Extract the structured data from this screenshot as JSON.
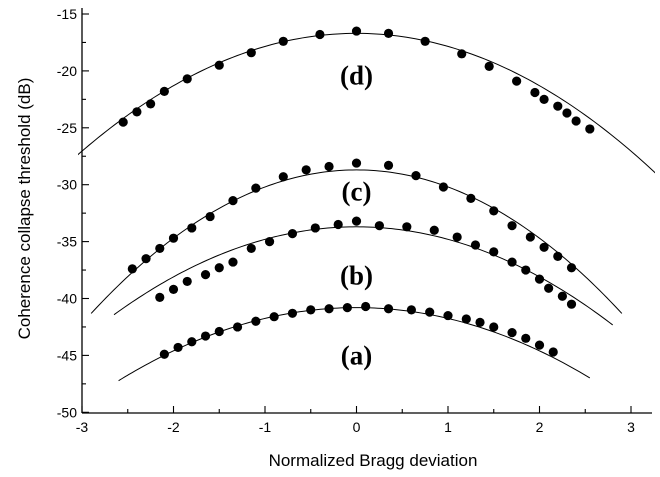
{
  "chart_data": {
    "type": "scatter",
    "xlabel": "Normalized Bragg deviation",
    "ylabel": "Coherence collapse threshold (dB)",
    "xlim": [
      -3,
      3.5
    ],
    "ylim": [
      -50,
      -15
    ],
    "xticks": [
      -3,
      -2,
      -1,
      0,
      1,
      2,
      3
    ],
    "yticks": [
      -50,
      -45,
      -40,
      -35,
      -30,
      -25,
      -20,
      -15
    ],
    "grid": false,
    "series": [
      {
        "name": "(a)",
        "label_pos": [
          0,
          -45
        ],
        "fit": {
          "peak": -40.8,
          "curvature": 0.95,
          "x_range": [
            -2.6,
            2.55
          ]
        },
        "points": [
          [
            -2.1,
            -44.9
          ],
          [
            -1.95,
            -44.3
          ],
          [
            -1.8,
            -43.8
          ],
          [
            -1.65,
            -43.3
          ],
          [
            -1.5,
            -42.9
          ],
          [
            -1.3,
            -42.5
          ],
          [
            -1.1,
            -42.0
          ],
          [
            -0.9,
            -41.6
          ],
          [
            -0.7,
            -41.3
          ],
          [
            -0.5,
            -41.0
          ],
          [
            -0.3,
            -40.9
          ],
          [
            -0.1,
            -40.8
          ],
          [
            0.1,
            -40.7
          ],
          [
            0.35,
            -40.9
          ],
          [
            0.6,
            -41.0
          ],
          [
            0.8,
            -41.2
          ],
          [
            1.0,
            -41.5
          ],
          [
            1.2,
            -41.8
          ],
          [
            1.35,
            -42.1
          ],
          [
            1.5,
            -42.5
          ],
          [
            1.7,
            -43.0
          ],
          [
            1.85,
            -43.5
          ],
          [
            2.0,
            -44.1
          ],
          [
            2.15,
            -44.7
          ]
        ]
      },
      {
        "name": "(b)",
        "label_pos": [
          0,
          -38
        ],
        "fit": {
          "peak": -33.7,
          "curvature": 1.1,
          "x_range": [
            -2.65,
            2.8
          ]
        },
        "points": [
          [
            -2.15,
            -39.9
          ],
          [
            -2.0,
            -39.2
          ],
          [
            -1.85,
            -38.5
          ],
          [
            -1.65,
            -37.9
          ],
          [
            -1.5,
            -37.3
          ],
          [
            -1.35,
            -36.8
          ],
          [
            -1.15,
            -35.6
          ],
          [
            -0.95,
            -35.0
          ],
          [
            -0.7,
            -34.3
          ],
          [
            -0.45,
            -33.8
          ],
          [
            -0.2,
            -33.5
          ],
          [
            0,
            -33.2
          ],
          [
            0.25,
            -33.6
          ],
          [
            0.55,
            -33.7
          ],
          [
            0.85,
            -34.0
          ],
          [
            1.1,
            -34.6
          ],
          [
            1.3,
            -35.3
          ],
          [
            1.5,
            -35.9
          ],
          [
            1.7,
            -36.8
          ],
          [
            1.85,
            -37.5
          ],
          [
            2.0,
            -38.3
          ],
          [
            2.1,
            -39.1
          ],
          [
            2.25,
            -39.8
          ],
          [
            2.35,
            -40.5
          ]
        ]
      },
      {
        "name": "(c)",
        "label_pos": [
          0,
          -30.6
        ],
        "fit": {
          "peak": -28.7,
          "curvature": 1.5,
          "x_range": [
            -2.9,
            2.9
          ]
        },
        "points": [
          [
            -2.45,
            -37.4
          ],
          [
            -2.3,
            -36.5
          ],
          [
            -2.15,
            -35.6
          ],
          [
            -2.0,
            -34.7
          ],
          [
            -1.8,
            -33.8
          ],
          [
            -1.6,
            -32.8
          ],
          [
            -1.35,
            -31.4
          ],
          [
            -1.1,
            -30.3
          ],
          [
            -0.8,
            -29.3
          ],
          [
            -0.55,
            -28.7
          ],
          [
            -0.3,
            -28.4
          ],
          [
            0,
            -28.1
          ],
          [
            0.35,
            -28.3
          ],
          [
            0.65,
            -29.2
          ],
          [
            0.95,
            -30.2
          ],
          [
            1.25,
            -31.2
          ],
          [
            1.5,
            -32.3
          ],
          [
            1.7,
            -33.6
          ],
          [
            1.9,
            -34.6
          ],
          [
            2.05,
            -35.5
          ],
          [
            2.2,
            -36.3
          ],
          [
            2.35,
            -37.3
          ]
        ]
      },
      {
        "name": "(d)",
        "label_pos": [
          0,
          -20.4
        ],
        "fit": {
          "peak": -16.7,
          "curvature": 1.15,
          "x_range": [
            -3.3,
            3.35
          ]
        },
        "points": [
          [
            -2.55,
            -24.5
          ],
          [
            -2.4,
            -23.6
          ],
          [
            -2.25,
            -22.9
          ],
          [
            -2.1,
            -21.8
          ],
          [
            -1.85,
            -20.7
          ],
          [
            -1.5,
            -19.5
          ],
          [
            -1.15,
            -18.4
          ],
          [
            -0.8,
            -17.4
          ],
          [
            -0.4,
            -16.8
          ],
          [
            0,
            -16.5
          ],
          [
            0.35,
            -16.7
          ],
          [
            0.75,
            -17.4
          ],
          [
            1.15,
            -18.5
          ],
          [
            1.45,
            -19.6
          ],
          [
            1.75,
            -20.9
          ],
          [
            1.95,
            -21.9
          ],
          [
            2.05,
            -22.5
          ],
          [
            2.2,
            -23.1
          ],
          [
            2.3,
            -23.7
          ],
          [
            2.4,
            -24.4
          ],
          [
            2.55,
            -25.1
          ]
        ]
      }
    ]
  }
}
